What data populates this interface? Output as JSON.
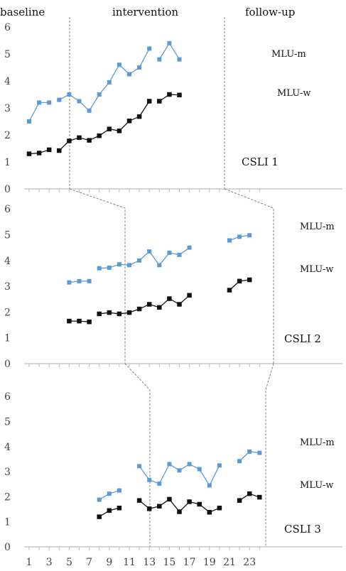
{
  "phases": [
    "baseline",
    "intervention",
    "follow-up"
  ],
  "colors": {
    "mlu_m": "#5b9bd5",
    "mlu_w": "#111111",
    "axis": "#bfbfbf",
    "phase_line": "#808080"
  },
  "chart_data": {
    "type": "line",
    "xlim": [
      1,
      24
    ],
    "x_tick_labels": [
      "1",
      "3",
      "5",
      "7",
      "9",
      "11",
      "13",
      "15",
      "17",
      "19",
      "21",
      "23"
    ],
    "panels": [
      {
        "label": "CSLI 1",
        "ylim": [
          0,
          6
        ],
        "y_tick_labels": [
          "0",
          "1",
          "2",
          "3",
          "4",
          "5",
          "6"
        ],
        "phase_changes": [
          4.5,
          19.5
        ],
        "series": [
          {
            "name": "MLU-m",
            "segments": [
              [
                [
                  1,
                  2.5
                ],
                [
                  2,
                  3.2
                ],
                [
                  3,
                  3.2
                ]
              ],
              [
                [
                  4,
                  3.3
                ],
                [
                  5,
                  3.5
                ],
                [
                  6,
                  3.25
                ],
                [
                  7,
                  2.9
                ],
                [
                  8,
                  3.5
                ],
                [
                  9,
                  3.95
                ],
                [
                  10,
                  4.6
                ],
                [
                  11,
                  4.25
                ],
                [
                  12,
                  4.5
                ],
                [
                  13,
                  5.2
                ]
              ],
              [
                [
                  14,
                  4.8
                ],
                [
                  15,
                  5.4
                ],
                [
                  16,
                  4.8
                ]
              ]
            ]
          },
          {
            "name": "MLU-w",
            "segments": [
              [
                [
                  1,
                  1.3
                ],
                [
                  2,
                  1.33
                ],
                [
                  3,
                  1.45
                ]
              ],
              [
                [
                  4,
                  1.42
                ],
                [
                  5,
                  1.78
                ],
                [
                  6,
                  1.9
                ],
                [
                  7,
                  1.8
                ],
                [
                  8,
                  1.97
                ],
                [
                  9,
                  2.22
                ],
                [
                  10,
                  2.15
                ],
                [
                  11,
                  2.52
                ],
                [
                  12,
                  2.68
                ],
                [
                  13,
                  3.25
                ]
              ],
              [
                [
                  14,
                  3.25
                ],
                [
                  15,
                  3.5
                ],
                [
                  16,
                  3.48
                ]
              ]
            ]
          }
        ]
      },
      {
        "label": "CSLI 2",
        "ylim": [
          0,
          6
        ],
        "y_tick_labels": [
          "0",
          "1",
          "2",
          "3",
          "4",
          "5",
          "6"
        ],
        "phase_changes": [
          7.5,
          20.5
        ],
        "series": [
          {
            "name": "MLU-m",
            "segments": [
              [
                [
                  5,
                  3.15
                ],
                [
                  6,
                  3.2
                ],
                [
                  7,
                  3.2
                ]
              ],
              [
                [
                  8,
                  3.7
                ],
                [
                  9,
                  3.72
                ],
                [
                  10,
                  3.85
                ],
                [
                  11,
                  3.82
                ],
                [
                  12,
                  4.0
                ],
                [
                  13,
                  4.35
                ],
                [
                  14,
                  3.82
                ],
                [
                  15,
                  4.3
                ],
                [
                  16,
                  4.22
                ],
                [
                  17,
                  4.5
                ]
              ],
              [
                [
                  21,
                  4.78
                ],
                [
                  22,
                  4.92
                ],
                [
                  23,
                  4.98
                ]
              ]
            ]
          },
          {
            "name": "MLU-w",
            "segments": [
              [
                [
                  5,
                  1.65
                ],
                [
                  6,
                  1.65
                ],
                [
                  7,
                  1.62
                ]
              ],
              [
                [
                  8,
                  1.93
                ],
                [
                  9,
                  1.98
                ],
                [
                  10,
                  1.93
                ],
                [
                  11,
                  1.98
                ],
                [
                  12,
                  2.12
                ],
                [
                  13,
                  2.3
                ],
                [
                  14,
                  2.18
                ],
                [
                  15,
                  2.52
                ],
                [
                  16,
                  2.3
                ],
                [
                  17,
                  2.65
                ]
              ],
              [
                [
                  21,
                  2.85
                ],
                [
                  22,
                  3.2
                ],
                [
                  23,
                  3.25
                ]
              ]
            ]
          }
        ]
      },
      {
        "label": "CSLI 3",
        "ylim": [
          0,
          6
        ],
        "y_tick_labels": [
          "0",
          "1",
          "2",
          "3",
          "4",
          "5",
          "6"
        ],
        "phase_changes": [
          11,
          21
        ],
        "series": [
          {
            "name": "MLU-m",
            "segments": [
              [
                [
                  8,
                  1.88
                ],
                [
                  9,
                  2.12
                ],
                [
                  10,
                  2.25
                ]
              ],
              [
                [
                  12,
                  3.22
                ],
                [
                  13,
                  2.67
                ],
                [
                  14,
                  2.52
                ],
                [
                  15,
                  3.3
                ],
                [
                  16,
                  3.05
                ],
                [
                  17,
                  3.3
                ],
                [
                  18,
                  3.1
                ],
                [
                  19,
                  2.45
                ],
                [
                  20,
                  3.25
                ]
              ],
              [
                [
                  22,
                  3.42
                ],
                [
                  23,
                  3.8
                ],
                [
                  24,
                  3.75
                ]
              ]
            ]
          },
          {
            "name": "MLU-w",
            "segments": [
              [
                [
                  8,
                  1.2
                ],
                [
                  9,
                  1.45
                ],
                [
                  10,
                  1.55
                ]
              ],
              [
                [
                  12,
                  1.85
                ],
                [
                  13,
                  1.52
                ],
                [
                  14,
                  1.62
                ],
                [
                  15,
                  1.9
                ],
                [
                  16,
                  1.4
                ],
                [
                  17,
                  1.8
                ],
                [
                  18,
                  1.7
                ],
                [
                  19,
                  1.38
                ],
                [
                  20,
                  1.55
                ]
              ],
              [
                [
                  22,
                  1.85
                ],
                [
                  23,
                  2.12
                ],
                [
                  24,
                  1.98
                ]
              ]
            ]
          }
        ]
      }
    ]
  }
}
